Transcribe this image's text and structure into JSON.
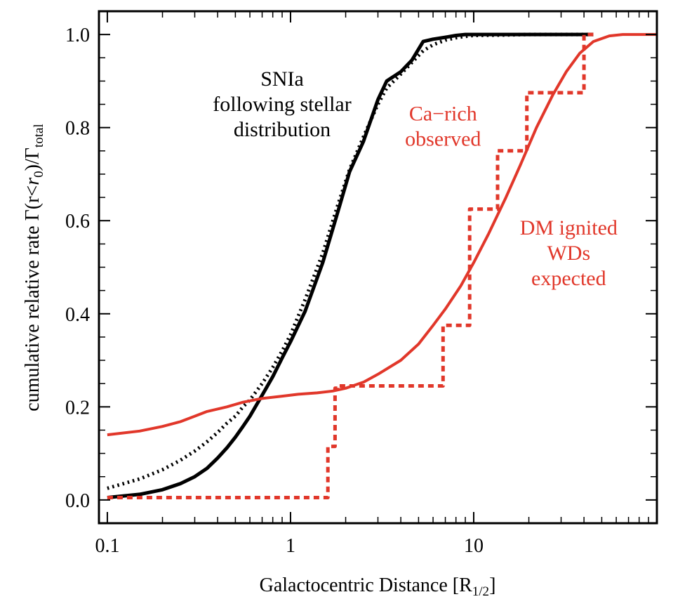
{
  "chart_data": {
    "type": "line",
    "xlabel": "Galactocentric Distance [R",
    "xlabel_sub": "1/2",
    "xlabel_end": "]",
    "ylabel_prefix": "cumulative relative rate Γ(r<",
    "ylabel_r": "r",
    "ylabel_r_sub": "0",
    "ylabel_mid": ")/Γ",
    "ylabel_sub": "total",
    "x_scale": "log",
    "xlim": [
      0.09,
      100
    ],
    "ylim": [
      -0.05,
      1.05
    ],
    "x_ticks": [
      {
        "value": 0.1,
        "label": "0.1"
      },
      {
        "value": 1,
        "label": "1"
      },
      {
        "value": 10,
        "label": "10"
      }
    ],
    "y_ticks": [
      {
        "value": 0.0,
        "label": "0.0"
      },
      {
        "value": 0.2,
        "label": "0.2"
      },
      {
        "value": 0.4,
        "label": "0.4"
      },
      {
        "value": 0.6,
        "label": "0.6"
      },
      {
        "value": 0.8,
        "label": "0.8"
      },
      {
        "value": 1.0,
        "label": "1.0"
      }
    ],
    "grid": false,
    "colors": {
      "black": "#000000",
      "red": "#e1372a"
    },
    "series": [
      {
        "color": "#000000",
        "style": "solid",
        "x": [
          0.1,
          0.15,
          0.2,
          0.25,
          0.3,
          0.35,
          0.4,
          0.45,
          0.5,
          0.55,
          0.6,
          0.7,
          0.8,
          0.9,
          1.0,
          1.2,
          1.5,
          1.8,
          2.1,
          2.5,
          3.0,
          3.35,
          4.0,
          4.6,
          5.3,
          6.0,
          7.0,
          8.0,
          9.0,
          10,
          12,
          15,
          20,
          30,
          45
        ],
        "y": [
          0.005,
          0.012,
          0.022,
          0.035,
          0.05,
          0.068,
          0.09,
          0.112,
          0.135,
          0.158,
          0.18,
          0.225,
          0.265,
          0.305,
          0.34,
          0.405,
          0.51,
          0.615,
          0.705,
          0.77,
          0.86,
          0.9,
          0.92,
          0.945,
          0.985,
          0.99,
          0.994,
          0.998,
          1.0,
          1.0,
          1.0,
          1.0,
          1.0,
          1.0,
          1.0
        ]
      },
      {
        "color": "#000000",
        "style": "dotted",
        "x": [
          0.1,
          0.15,
          0.2,
          0.25,
          0.3,
          0.35,
          0.4,
          0.45,
          0.5,
          0.55,
          0.6,
          0.7,
          0.8,
          0.9,
          1.0,
          1.2,
          1.5,
          1.8,
          2.1,
          2.5,
          3.0,
          3.35,
          4.0,
          4.6,
          5.3,
          6.0,
          7.0,
          8.0,
          9.0,
          10,
          15,
          20,
          30,
          45
        ],
        "y": [
          0.025,
          0.045,
          0.065,
          0.085,
          0.105,
          0.125,
          0.145,
          0.165,
          0.18,
          0.2,
          0.215,
          0.25,
          0.285,
          0.32,
          0.355,
          0.43,
          0.53,
          0.63,
          0.71,
          0.78,
          0.85,
          0.885,
          0.915,
          0.94,
          0.965,
          0.978,
          0.988,
          0.993,
          0.996,
          0.998,
          0.999,
          1.0,
          1.0,
          1.0
        ]
      },
      {
        "color": "#e1372a",
        "style": "solid",
        "x": [
          0.1,
          0.15,
          0.2,
          0.25,
          0.3,
          0.35,
          0.45,
          0.55,
          0.7,
          0.9,
          1.1,
          1.4,
          1.7,
          2.0,
          2.5,
          3.0,
          4.0,
          5.0,
          6.0,
          7.0,
          8.5,
          10,
          12,
          15,
          18,
          22,
          27,
          32,
          38,
          45,
          55,
          65,
          80,
          100
        ],
        "y": [
          0.14,
          0.148,
          0.158,
          0.168,
          0.18,
          0.19,
          0.2,
          0.21,
          0.218,
          0.223,
          0.227,
          0.23,
          0.234,
          0.24,
          0.253,
          0.27,
          0.3,
          0.335,
          0.375,
          0.41,
          0.46,
          0.51,
          0.57,
          0.65,
          0.72,
          0.8,
          0.87,
          0.92,
          0.96,
          0.985,
          0.997,
          1.0,
          1.0,
          1.0
        ]
      },
      {
        "color": "#e1372a",
        "style": "dashed",
        "x": [
          0.1,
          1.6,
          1.6,
          1.75,
          1.75,
          1.8,
          1.8,
          6.8,
          6.8,
          9.5,
          9.5,
          13.5,
          13.5,
          19.5,
          19.5,
          40,
          40,
          45
        ],
        "y": [
          0.005,
          0.005,
          0.115,
          0.115,
          0.24,
          0.24,
          0.245,
          0.245,
          0.375,
          0.375,
          0.625,
          0.625,
          0.75,
          0.75,
          0.875,
          0.875,
          1.0,
          1.0
        ]
      }
    ],
    "annotations": [
      {
        "lines": [
          "SNIa",
          "following stellar",
          "distribution"
        ],
        "color": "#000000",
        "x": 0.9,
        "y": 0.89
      },
      {
        "lines": [
          "Ca−rich",
          "observed"
        ],
        "color": "#e1372a",
        "x": 6.8,
        "y": 0.815
      },
      {
        "lines": [
          "DM ignited",
          "WDs",
          "expected"
        ],
        "color": "#e1372a",
        "x": 33,
        "y": 0.57
      }
    ]
  }
}
